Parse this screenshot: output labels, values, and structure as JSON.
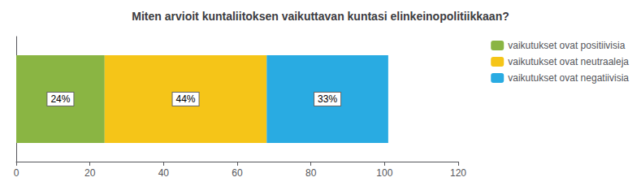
{
  "chart_data": {
    "type": "bar",
    "title": "Miten arvioit kuntaliitoksen vaikuttavan kuntasi elinkeinopolitiikkaan?",
    "orientation": "horizontal",
    "stacked": true,
    "data_labels": true,
    "tick_labels": "x",
    "grid": false,
    "legend": "right",
    "categories": [
      null
    ],
    "series": [
      {
        "name": "vaikutukset ovat positiivisia",
        "color": "#8ab543",
        "values": [
          24
        ],
        "value_labels": [
          "24%"
        ]
      },
      {
        "name": "vaikutukset ovat neutraaleja",
        "color": "#f5c518",
        "values": [
          44
        ],
        "value_labels": [
          "44%"
        ]
      },
      {
        "name": "vaikutukset ovat negatiivisia",
        "color": "#29abe2",
        "values": [
          33
        ],
        "value_labels": [
          "33%"
        ]
      }
    ],
    "xlim": [
      0,
      120
    ],
    "xticks": [
      0,
      20,
      40,
      60,
      80,
      100,
      120
    ]
  }
}
